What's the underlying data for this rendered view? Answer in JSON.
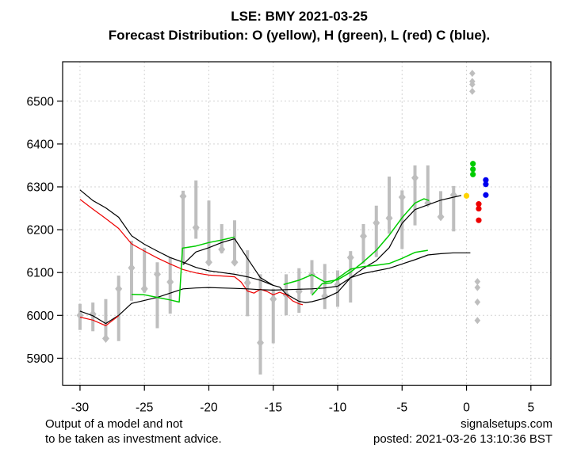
{
  "header": {
    "title": "LSE: BMY 2021-03-25",
    "subtitle": "Forecast Distribution: O (yellow), H (green), L (red) C (blue)."
  },
  "footer": {
    "disclaimer_line1": "Output of a model and not",
    "disclaimer_line2": "to be taken as investment advice.",
    "site": "signalsetups.com",
    "posted": "posted: 2021-03-26 13:10:36 BST"
  },
  "colors": {
    "bar_gray": "#BEBEBE",
    "grid_gray": "#D3D3D3",
    "black": "#000000",
    "red": "#EE0000",
    "green": "#00CC00",
    "blue": "#0000EE",
    "yellow": "#FFD500",
    "frame": "#000000"
  },
  "chart_data": {
    "type": "line",
    "components": [
      "high-low-bars",
      "model-lines",
      "forecast-scatter"
    ],
    "title": "LSE: BMY 2021-03-25",
    "xlabel": "",
    "ylabel": "",
    "xlim": [
      -31.35,
      6.55
    ],
    "ylim": [
      5837,
      6592
    ],
    "x_ticks": [
      -30,
      -25,
      -20,
      -15,
      -10,
      -5,
      0,
      5
    ],
    "y_ticks": [
      5900,
      6000,
      6100,
      6200,
      6300,
      6400,
      6500
    ],
    "grid": true,
    "legend_position": "in-subtitle",
    "hl_bars": [
      {
        "x": -30,
        "high": 6027,
        "low": 5966,
        "close": 6000
      },
      {
        "x": -29,
        "high": 6030,
        "low": 5963,
        "close": 6003
      },
      {
        "x": -28,
        "high": 6038,
        "low": 5940,
        "close": 5946
      },
      {
        "x": -27,
        "high": 6093,
        "low": 5940,
        "close": 6062
      },
      {
        "x": -26,
        "high": 6174,
        "low": 6034,
        "close": 6111
      },
      {
        "x": -25,
        "high": 6158,
        "low": 6053,
        "close": 6062
      },
      {
        "x": -24,
        "high": 6124,
        "low": 5970,
        "close": 6096
      },
      {
        "x": -23,
        "high": 6136,
        "low": 6004,
        "close": 6078
      },
      {
        "x": -22,
        "high": 6291,
        "low": 6118,
        "close": 6278
      },
      {
        "x": -21,
        "high": 6315,
        "low": 6179,
        "close": 6205
      },
      {
        "x": -20,
        "high": 6268,
        "low": 6118,
        "close": 6124
      },
      {
        "x": -19,
        "high": 6213,
        "low": 6145,
        "close": 6154
      },
      {
        "x": -18,
        "high": 6222,
        "low": 6118,
        "close": 6124
      },
      {
        "x": -17,
        "high": 6152,
        "low": 5998,
        "close": 6076
      },
      {
        "x": -16,
        "high": 6096,
        "low": 5862,
        "close": 5936
      },
      {
        "x": -15,
        "high": 6062,
        "low": 5935,
        "close": 6038
      },
      {
        "x": -14,
        "high": 6096,
        "low": 6000,
        "close": 6048
      },
      {
        "x": -13,
        "high": 6110,
        "low": 6006,
        "close": 6056
      },
      {
        "x": -12,
        "high": 6129,
        "low": 6050,
        "close": 6095
      },
      {
        "x": -11,
        "high": 6120,
        "low": 6015,
        "close": 6045
      },
      {
        "x": -10,
        "high": 6105,
        "low": 6020,
        "close": 6072
      },
      {
        "x": -9,
        "high": 6150,
        "low": 6030,
        "close": 6135
      },
      {
        "x": -8,
        "high": 6213,
        "low": 6120,
        "close": 6185
      },
      {
        "x": -7,
        "high": 6256,
        "low": 6136,
        "close": 6216
      },
      {
        "x": -6,
        "high": 6324,
        "low": 6191,
        "close": 6227
      },
      {
        "x": -5,
        "high": 6292,
        "low": 6155,
        "close": 6276
      },
      {
        "x": -4,
        "high": 6350,
        "low": 6210,
        "close": 6321
      },
      {
        "x": -3,
        "high": 6350,
        "low": 6262,
        "close": 6262
      },
      {
        "x": -2,
        "high": 6290,
        "low": 6228,
        "close": 6230
      },
      {
        "x": -1,
        "high": 6302,
        "low": 6196,
        "close": 6281
      }
    ],
    "series": [
      {
        "name": "black-forecast",
        "color": "#000000",
        "width": 1.2,
        "points": [
          [
            -30,
            6293
          ],
          [
            -29,
            6268
          ],
          [
            -28,
            6251
          ],
          [
            -27,
            6229
          ],
          [
            -26,
            6186
          ],
          [
            -25,
            6166
          ],
          [
            -24,
            6150
          ],
          [
            -23,
            6135
          ],
          [
            -22,
            6124
          ],
          [
            -21,
            6112
          ],
          [
            -20,
            6104
          ],
          [
            -19,
            6100
          ],
          [
            -18,
            6096
          ],
          [
            -17,
            6090
          ],
          [
            -16,
            6082
          ],
          [
            -15,
            6070
          ],
          [
            -14.5,
            6066
          ],
          [
            -14,
            6050
          ],
          [
            -13,
            6033
          ],
          [
            -12.5,
            6030
          ],
          [
            -12,
            6032
          ],
          [
            -11,
            6040
          ],
          [
            -10,
            6054
          ],
          [
            -9,
            6088
          ],
          [
            -8,
            6110
          ],
          [
            -7,
            6128
          ],
          [
            -6,
            6158
          ],
          [
            -5,
            6215
          ],
          [
            -4,
            6247
          ],
          [
            -3,
            6258
          ],
          [
            -2,
            6269
          ],
          [
            -1,
            6276
          ],
          [
            -0.4,
            6280
          ]
        ]
      },
      {
        "name": "red-forecast",
        "color": "#EE0000",
        "width": 1.2,
        "points": [
          [
            -30,
            6271
          ],
          [
            -29,
            6248
          ],
          [
            -28,
            6226
          ],
          [
            -27,
            6203
          ],
          [
            -26,
            6167
          ],
          [
            -25,
            6150
          ],
          [
            -24,
            6134
          ],
          [
            -23,
            6120
          ],
          [
            -22,
            6107
          ],
          [
            -21,
            6099
          ],
          [
            -20,
            6094
          ],
          [
            -19,
            6092
          ],
          [
            -18,
            6090
          ],
          [
            -17.5,
            6078
          ],
          [
            -17,
            6057
          ],
          [
            -16.5,
            6052
          ],
          [
            -16,
            6061
          ],
          [
            -15.5,
            6056
          ],
          [
            -15,
            6048
          ],
          [
            -14.5,
            6054
          ],
          [
            -14,
            6048
          ],
          [
            -13.5,
            6034
          ],
          [
            -13,
            6027
          ],
          [
            -12.7,
            6025
          ]
        ]
      },
      {
        "name": "black-history",
        "color": "#000000",
        "width": 1.2,
        "points": [
          [
            -30,
            6010
          ],
          [
            -29,
            5999
          ],
          [
            -28,
            5981
          ],
          [
            -27,
            6000
          ],
          [
            -26,
            6028
          ],
          [
            -25,
            6035
          ],
          [
            -24,
            6042
          ],
          [
            -23,
            6052
          ],
          [
            -22,
            6062
          ],
          [
            -21,
            6064
          ],
          [
            -20,
            6065
          ],
          [
            -19,
            6064
          ],
          [
            -18,
            6063
          ],
          [
            -17,
            6062
          ],
          [
            -16,
            6060
          ],
          [
            -15,
            6059
          ],
          [
            -14,
            6060
          ],
          [
            -13,
            6061
          ],
          [
            -12,
            6062
          ],
          [
            -11,
            6064
          ],
          [
            -10,
            6068
          ],
          [
            -9,
            6088
          ],
          [
            -8,
            6098
          ],
          [
            -7,
            6104
          ],
          [
            -6,
            6110
          ],
          [
            -5,
            6120
          ],
          [
            -4,
            6130
          ],
          [
            -3,
            6141
          ],
          [
            -2,
            6144
          ],
          [
            -1,
            6146
          ],
          [
            0.3,
            6146
          ]
        ]
      },
      {
        "name": "red-history",
        "color": "#EE0000",
        "width": 1.2,
        "points": [
          [
            -30,
            5996
          ],
          [
            -29,
            5989
          ],
          [
            -28,
            5976
          ],
          [
            -27,
            5999
          ]
        ]
      },
      {
        "name": "black-peak",
        "color": "#000000",
        "width": 1.2,
        "points": [
          [
            -22,
            6119
          ],
          [
            -21,
            6148
          ],
          [
            -20,
            6158
          ],
          [
            -19,
            6170
          ],
          [
            -18,
            6179
          ],
          [
            -17,
            6133
          ],
          [
            -16,
            6088
          ],
          [
            -15,
            6070
          ]
        ]
      },
      {
        "name": "green-peak",
        "color": "#00CC00",
        "width": 1.5,
        "points": [
          [
            -26,
            6049
          ],
          [
            -25,
            6048
          ],
          [
            -24,
            6042
          ],
          [
            -23,
            6036
          ],
          [
            -22.3,
            6031
          ],
          [
            -22.05,
            6157
          ],
          [
            -21,
            6162
          ],
          [
            -20,
            6170
          ],
          [
            -19,
            6176
          ],
          [
            -18,
            6183
          ]
        ]
      },
      {
        "name": "green-high-forecast",
        "color": "#00CC00",
        "width": 1.5,
        "points": [
          [
            -14.2,
            6072
          ],
          [
            -13,
            6082
          ],
          [
            -12,
            6095
          ],
          [
            -11,
            6078
          ],
          [
            -10,
            6083
          ],
          [
            -9,
            6101
          ],
          [
            -8,
            6125
          ],
          [
            -7,
            6152
          ],
          [
            -6,
            6187
          ],
          [
            -5,
            6228
          ],
          [
            -4,
            6262
          ],
          [
            -3.3,
            6272
          ],
          [
            -2.9,
            6268
          ]
        ]
      },
      {
        "name": "green-low-forecast",
        "color": "#00CC00",
        "width": 1.5,
        "points": [
          [
            -12,
            6047
          ],
          [
            -11.2,
            6074
          ],
          [
            -10.5,
            6076
          ],
          [
            -9,
            6108
          ],
          [
            -8,
            6114
          ],
          [
            -7,
            6117
          ],
          [
            -6,
            6121
          ],
          [
            -5,
            6133
          ],
          [
            -4,
            6147
          ],
          [
            -3,
            6152
          ]
        ]
      }
    ],
    "forecast_dots": [
      {
        "name": "gray-high-outliers",
        "color": "#BEBEBE",
        "shape": "diamond",
        "points": [
          [
            0.45,
            6565
          ],
          [
            0.45,
            6546
          ],
          [
            0.45,
            6539
          ],
          [
            0.45,
            6523
          ]
        ]
      },
      {
        "name": "high-forecast-green",
        "color": "#00CC00",
        "shape": "circle",
        "points": [
          [
            0.5,
            6354
          ],
          [
            0.5,
            6341
          ],
          [
            0.5,
            6329
          ]
        ]
      },
      {
        "name": "close-forecast-blue",
        "color": "#0000EE",
        "shape": "circle",
        "points": [
          [
            1.5,
            6316
          ],
          [
            1.5,
            6306
          ],
          [
            1.5,
            6281
          ]
        ]
      },
      {
        "name": "open-forecast-yellow",
        "color": "#FFD500",
        "shape": "circle",
        "points": [
          [
            0,
            6279
          ]
        ]
      },
      {
        "name": "low-forecast-red",
        "color": "#EE0000",
        "shape": "circle",
        "points": [
          [
            0.95,
            6260
          ],
          [
            0.95,
            6249
          ],
          [
            0.95,
            6222
          ]
        ]
      },
      {
        "name": "gray-low-outliers",
        "color": "#BEBEBE",
        "shape": "diamond",
        "points": [
          [
            0.85,
            6079
          ],
          [
            0.85,
            6065
          ],
          [
            0.85,
            6031
          ],
          [
            0.85,
            5988
          ]
        ]
      }
    ]
  }
}
